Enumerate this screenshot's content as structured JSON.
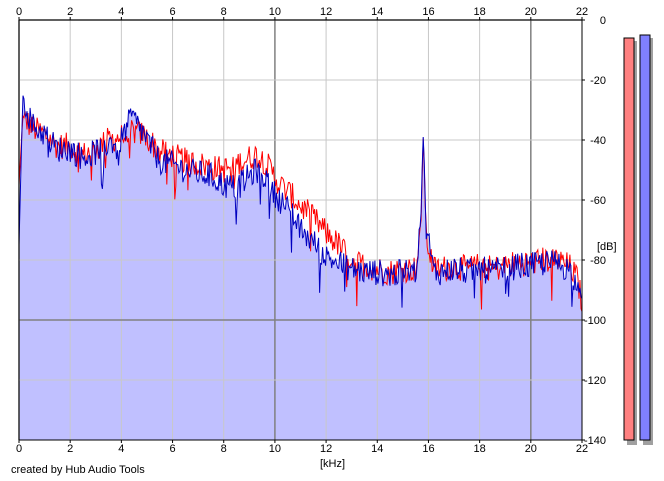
{
  "chart_data": {
    "type": "line",
    "xlabel": "[kHz]",
    "ylabel": "[dB]",
    "xlim": [
      0,
      22
    ],
    "ylim": [
      -140,
      0
    ],
    "x_ticks": [
      0,
      2,
      4,
      6,
      8,
      10,
      12,
      14,
      16,
      18,
      20,
      22
    ],
    "y_ticks": [
      0,
      -20,
      -40,
      -60,
      -80,
      -100,
      -120,
      -140
    ],
    "x_tick_labels": [
      "0",
      "2",
      "4",
      "6",
      "8",
      "10",
      "12",
      "14",
      "16",
      "18",
      "20",
      "22"
    ],
    "y_tick_labels": [
      "0",
      "-20",
      "-40",
      "-60",
      "-80",
      "-100",
      "-120",
      "-140"
    ],
    "grid": true,
    "fill_color": "#c0c0ff",
    "series": [
      {
        "color": "#ff0000",
        "x": [
          0,
          0.15,
          0.5,
          1,
          1.5,
          2,
          2.5,
          3,
          3.5,
          4,
          4.4,
          4.8,
          5.2,
          5.5,
          6,
          6.5,
          7,
          7.5,
          8,
          8.5,
          9,
          9.3,
          9.6,
          9.9,
          10.2,
          10.6,
          11,
          11.5,
          12,
          12.5,
          13,
          13.5,
          14,
          14.5,
          15,
          15.5,
          15.7,
          15.8,
          15.9,
          16.2,
          16.5,
          17,
          17.5,
          18,
          18.5,
          19,
          19.5,
          20,
          20.5,
          21,
          21.5,
          21.8,
          22
        ],
        "values": [
          -55,
          -32,
          -36,
          -38,
          -42,
          -42,
          -45,
          -43,
          -40,
          -39,
          -37,
          -38,
          -41,
          -44,
          -45,
          -47,
          -48,
          -49,
          -50,
          -48,
          -46,
          -45,
          -47,
          -51,
          -55,
          -58,
          -62,
          -66,
          -71,
          -75,
          -80,
          -82,
          -83,
          -84,
          -83,
          -83,
          -72,
          -37,
          -72,
          -83,
          -83,
          -82,
          -83,
          -82,
          -83,
          -82,
          -81,
          -81,
          -80,
          -80,
          -82,
          -86,
          -94
        ]
      },
      {
        "color": "#0000c0",
        "x": [
          0,
          0.15,
          0.5,
          1,
          1.5,
          2,
          2.5,
          3,
          3.5,
          4,
          4.4,
          4.8,
          5.2,
          5.5,
          6,
          6.5,
          7,
          7.5,
          8,
          8.5,
          9,
          9.3,
          9.6,
          9.9,
          10.2,
          10.6,
          11,
          11.5,
          12,
          12.5,
          13,
          13.5,
          14,
          14.5,
          15,
          15.5,
          15.7,
          15.8,
          15.9,
          16.2,
          16.5,
          17,
          17.5,
          18,
          18.5,
          19,
          19.5,
          20,
          20.5,
          21,
          21.5,
          21.8,
          22
        ],
        "values": [
          -75,
          -25,
          -35,
          -38,
          -43,
          -43,
          -46,
          -44,
          -41,
          -40,
          -32,
          -37,
          -43,
          -47,
          -48,
          -50,
          -51,
          -52,
          -55,
          -56,
          -52,
          -50,
          -52,
          -57,
          -60,
          -64,
          -70,
          -74,
          -79,
          -81,
          -83,
          -84,
          -84,
          -85,
          -84,
          -84,
          -65,
          -37,
          -68,
          -84,
          -84,
          -83,
          -84,
          -83,
          -84,
          -83,
          -82,
          -82,
          -81,
          -81,
          -83,
          -88,
          -97
        ]
      }
    ],
    "level_meters": [
      {
        "channel": "left",
        "color": "#ff8080",
        "level_db": -6
      },
      {
        "channel": "right",
        "color": "#8080ff",
        "level_db": -5
      }
    ]
  },
  "footer": {
    "credit": "created by Hub Audio Tools"
  }
}
